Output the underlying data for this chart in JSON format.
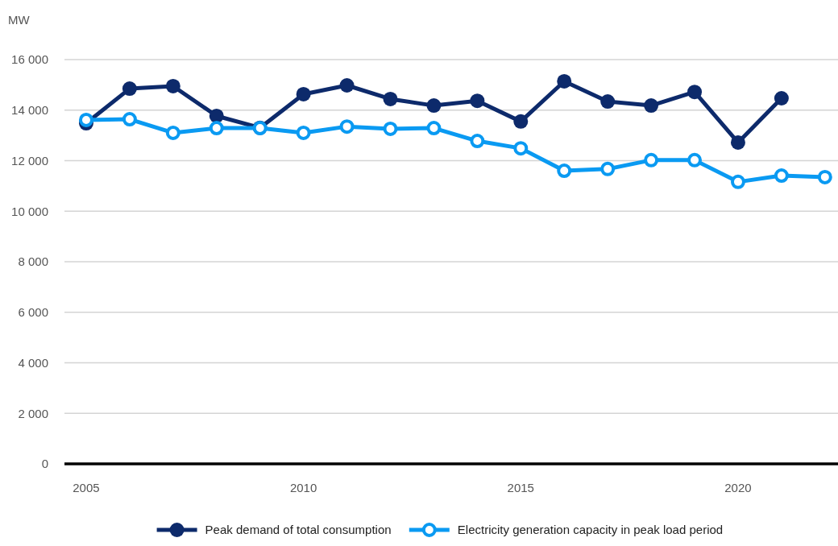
{
  "chart_data": {
    "type": "line",
    "ylabel": "MW",
    "x": [
      2005,
      2006,
      2007,
      2008,
      2009,
      2010,
      2011,
      2012,
      2013,
      2014,
      2015,
      2016,
      2017,
      2018,
      2019,
      2020,
      2021,
      2022
    ],
    "series": [
      {
        "name": "Peak demand of total consumption",
        "color": "#0d2a6b",
        "values": [
          13480,
          14850,
          14950,
          13770,
          13300,
          14630,
          14980,
          14440,
          14180,
          14370,
          13550,
          15140,
          14340,
          14180,
          14720,
          12720,
          14470,
          null
        ]
      },
      {
        "name": "Electricity generation capacity in peak load period",
        "color": "#0a9af2",
        "values": [
          13610,
          13640,
          13100,
          13290,
          13290,
          13100,
          13350,
          13260,
          13290,
          12780,
          12490,
          11600,
          11670,
          12020,
          12020,
          11160,
          11410,
          11350
        ]
      }
    ],
    "xlim": [
      2004.5,
      2022.3
    ],
    "xticks": [
      2005,
      2010,
      2015,
      2020
    ],
    "ylim": [
      0,
      16000
    ],
    "yticks": [
      {
        "value": 0,
        "label": "0"
      },
      {
        "value": 2000,
        "label": "2 000"
      },
      {
        "value": 4000,
        "label": "4 000"
      },
      {
        "value": 6000,
        "label": "6 000"
      },
      {
        "value": 8000,
        "label": "8 000"
      },
      {
        "value": 10000,
        "label": "10 000"
      },
      {
        "value": 12000,
        "label": "12 000"
      },
      {
        "value": 14000,
        "label": "14 000"
      },
      {
        "value": 16000,
        "label": "16 000"
      }
    ],
    "grid": "y",
    "legend": "bottom",
    "marker": "circle",
    "line_style": "solid"
  }
}
